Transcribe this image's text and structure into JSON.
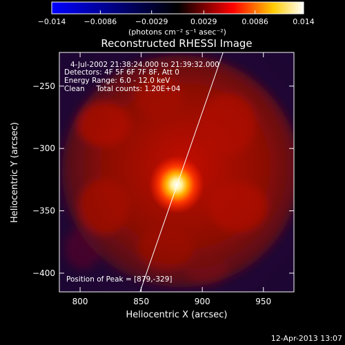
{
  "chart_data": {
    "type": "heatmap",
    "title": "Reconstructed RHESSI Image",
    "xlabel": "Heliocentric X (arcsec)",
    "ylabel": "Heliocentric Y (arcsec)",
    "xlim": [
      783,
      975
    ],
    "ylim": [
      -415,
      -223
    ],
    "x_ticks": [
      800,
      850,
      900,
      950
    ],
    "y_ticks": [
      -250,
      -300,
      -350,
      -400
    ],
    "x_tick_labels": [
      "800",
      "850",
      "900",
      "950"
    ],
    "y_tick_labels": [
      "−250",
      "−300",
      "−350",
      "−400"
    ],
    "colorbar": {
      "min": -0.014,
      "max": 0.014,
      "tick_values": [
        -0.014,
        -0.0086,
        -0.0029,
        0.0029,
        0.0086,
        0.014
      ],
      "tick_labels": [
        "−0.014",
        "−0.0086",
        "−0.0029",
        "0.0029",
        "0.0086",
        "0.014"
      ],
      "unit_label": "(photons cm⁻² s⁻¹ asec⁻²)"
    },
    "annotations": [
      "4-Jul-2002 21:38:24.000 to 21:39:32.000",
      "Detectors: 4F 5F 6F 7F 8F, Att 0",
      "Energy Range: 6.0 - 12.0 keV",
      "Clean     Total counts: 1.20E+04"
    ],
    "peak": {
      "label": "Position of Peak = [879,-329]",
      "x": 879,
      "y": -329,
      "value": 0.014
    },
    "limb_line": [
      [
        849,
        -415
      ],
      [
        917,
        -223
      ]
    ],
    "colors": {
      "background": "#000000",
      "frame": "#ffffff",
      "limb": "#ffffff",
      "colormap": [
        "#0000ff",
        "#000000",
        "#ff0000",
        "#ffff00",
        "#ffffff"
      ]
    }
  },
  "footer": {
    "timestamp": "12-Apr-2013 13:07"
  }
}
